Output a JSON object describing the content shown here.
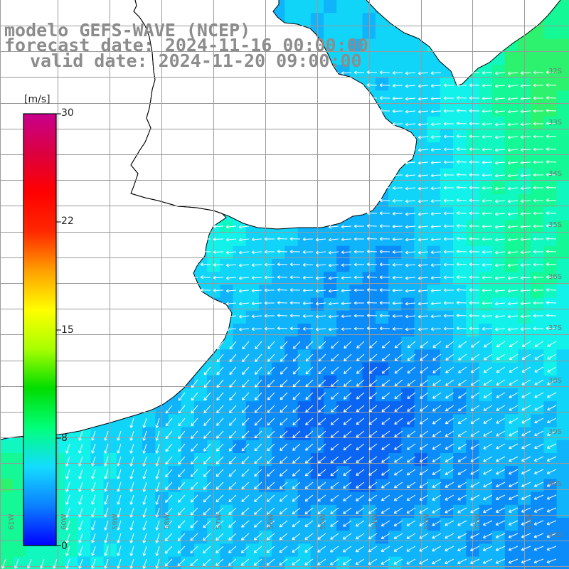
{
  "title_lines": [
    "modelo GEFS-WAVE (NCEP)",
    "forecast date: 2024-11-16 00:00:00",
    "valid date: 2024-11-20 09:00:00"
  ],
  "colorbar": {
    "unit": "[m/s]",
    "ticks": [
      {
        "value": 30,
        "label": "30"
      },
      {
        "value": 22,
        "label": "22"
      },
      {
        "value": 15,
        "label": "15"
      },
      {
        "value": 8,
        "label": "8"
      },
      {
        "value": 0,
        "label": "0"
      }
    ],
    "colors": [
      "#0000ff",
      "#0b7fff",
      "#14dcff",
      "#00ff7a",
      "#00dd00",
      "#a7ff00",
      "#ffff00",
      "#ffa000",
      "#ff2800",
      "#ff0000",
      "#dc0040",
      "#c8008c"
    ]
  },
  "lat_labels": [
    "32S",
    "33S",
    "34S",
    "35S",
    "36S",
    "37S",
    "38S",
    "39S",
    "40S",
    "41S"
  ],
  "lon_labels": [
    "61W",
    "60W",
    "59W",
    "58W",
    "57W",
    "56W",
    "55W",
    "54W",
    "53W",
    "52W",
    "51W"
  ],
  "map": {
    "field": "wind speed and direction",
    "land_color": "#ffffff",
    "coastline_color": "#000000",
    "grid_color": "#9a9a9a",
    "arrow_color": "#ffffff"
  }
}
